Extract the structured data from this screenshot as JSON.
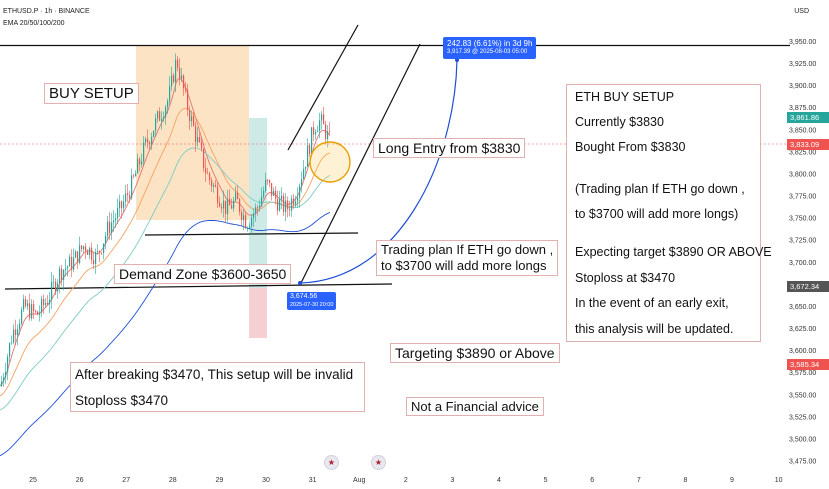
{
  "header": {
    "symbol": "ETHUSD.P · 1h · BINANCE",
    "indicator": "EMA 20/50/100/200",
    "currency": "USD"
  },
  "chart_data": {
    "type": "candlestick",
    "ylim": [
      3475,
      3955
    ],
    "y_ticks": [
      "3,950.00",
      "3,925.00",
      "3,900.00",
      "3,875.00",
      "3,850.00",
      "3,825.00",
      "3,800.00",
      "3,775.00",
      "3,750.00",
      "3,725.00",
      "3,700.00",
      "3,675.00",
      "3,650.00",
      "3,625.00",
      "3,600.00",
      "3,575.00",
      "3,550.00",
      "3,525.00",
      "3,500.00",
      "3,475.00"
    ],
    "x_ticks": [
      "25",
      "26",
      "27",
      "28",
      "29",
      "30",
      "31",
      "Aug",
      "2",
      "3",
      "4",
      "5",
      "6",
      "7",
      "8",
      "9",
      "10"
    ],
    "price_labels": [
      {
        "value": 3861.86,
        "text": "3,861.86",
        "color": "#26a69a"
      },
      {
        "value": 3833.09,
        "text": "3,833.09",
        "color": "#ef5350"
      },
      {
        "value": 3672.34,
        "text": "3,672.34",
        "color": "#555555"
      },
      {
        "value": 3585.34,
        "text": "3,585.34",
        "color": "#ef5350"
      }
    ],
    "measure": {
      "line1": "242.83 (6.61%) in 3d 9h",
      "line2": "3,917.39 @ 2025-08-03 05:00"
    },
    "low_marker": {
      "line1": "3,674.56",
      "line2": "2025-07-30 20:00"
    },
    "colors": {
      "up": "#26a69a",
      "down": "#ef5350",
      "ema20": "#e57373",
      "ema50": "#f4a261",
      "ema100": "#80cbc4",
      "ema200": "#1e4fd8",
      "projection": "#1e4fd8"
    }
  },
  "annotations": {
    "buy_setup": "BUY SETUP",
    "demand_zone": "Demand Zone $3600-3650",
    "long_entry": "Long Entry from $3830",
    "trading_plan_1": "Trading plan If ETH go down ,",
    "trading_plan_2": " to $3700 will add more longs",
    "targeting": "Targeting $3890 or Above",
    "invalid": "After breaking $3470, This setup will be invalid",
    "stoploss": "Stoploss $3470",
    "not_advice": "Not a Financial advice"
  },
  "plan_box": {
    "lines": [
      "ETH BUY SETUP",
      "Currently $3830",
      "Bought From $3830",
      "(Trading plan If ETH go down ,",
      "to $3700 will add more longs)",
      "Expecting target $3890 OR ABOVE",
      "Stoploss at $3470",
      "In the event of an early exit,",
      "this analysis will be updated."
    ]
  }
}
